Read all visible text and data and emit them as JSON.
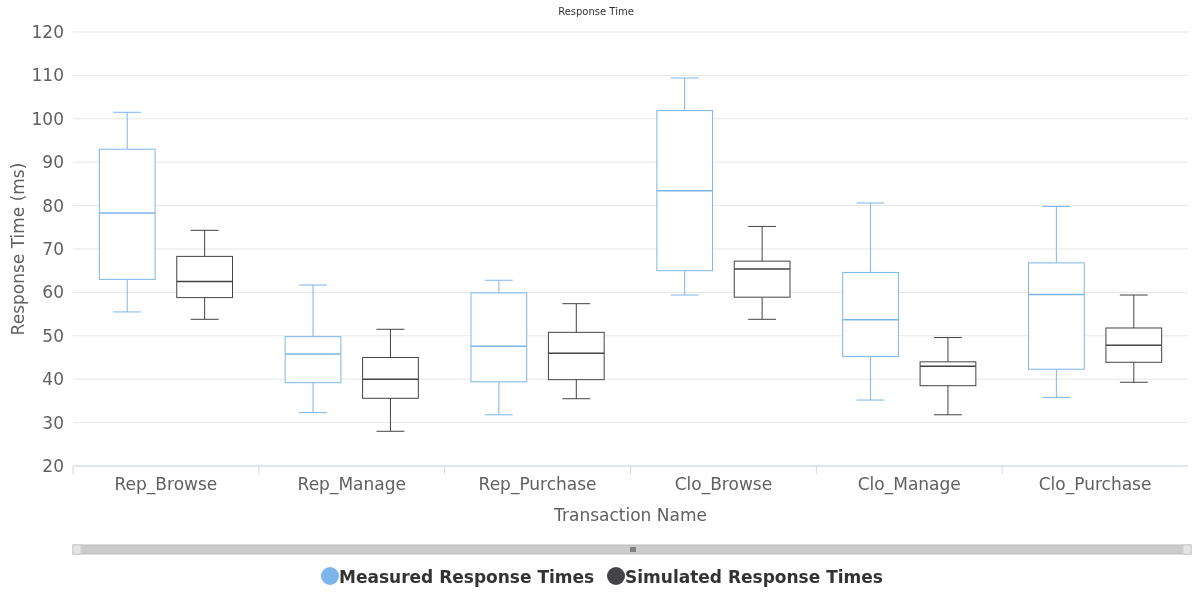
{
  "chart_data": {
    "type": "box",
    "title": "Response Time",
    "xlabel": "Transaction Name",
    "ylabel": "Response Time (ms)",
    "categories": [
      "Rep_Browse",
      "Rep_Manage",
      "Rep_Purchase",
      "Clo_Browse",
      "Clo_Manage",
      "Clo_Purchase"
    ],
    "ylim": [
      20,
      120
    ],
    "yticks": [
      20,
      30,
      40,
      50,
      60,
      70,
      80,
      90,
      100,
      110,
      120
    ],
    "grid": "y",
    "legend": "bottom",
    "series": [
      {
        "name": "Measured Response Times",
        "color": "#7cb5ec",
        "boxes": [
          {
            "low": 55.5,
            "q1": 63,
            "median": 78.3,
            "q3": 93,
            "high": 101.5
          },
          {
            "low": 32.3,
            "q1": 39.2,
            "median": 45.8,
            "q3": 49.8,
            "high": 61.7
          },
          {
            "low": 31.8,
            "q1": 39.4,
            "median": 47.6,
            "q3": 59.9,
            "high": 62.8
          },
          {
            "low": 59.4,
            "q1": 65,
            "median": 83.4,
            "q3": 101.9,
            "high": 109.4
          },
          {
            "low": 35.2,
            "q1": 45.2,
            "median": 53.7,
            "q3": 64.6,
            "high": 80.6
          },
          {
            "low": 35.8,
            "q1": 42.3,
            "median": 59.5,
            "q3": 66.8,
            "high": 79.8
          }
        ]
      },
      {
        "name": "Simulated Response Times",
        "color": "#434348",
        "boxes": [
          {
            "low": 53.8,
            "q1": 58.8,
            "median": 62.5,
            "q3": 68.3,
            "high": 74.3
          },
          {
            "low": 28,
            "q1": 35.6,
            "median": 40,
            "q3": 45,
            "high": 51.5
          },
          {
            "low": 35.5,
            "q1": 39.9,
            "median": 46,
            "q3": 50.8,
            "high": 57.4
          },
          {
            "low": 53.8,
            "q1": 58.9,
            "median": 65.4,
            "q3": 67.2,
            "high": 75.2
          },
          {
            "low": 31.8,
            "q1": 38.5,
            "median": 43,
            "q3": 44,
            "high": 49.6
          },
          {
            "low": 39.3,
            "q1": 43.9,
            "median": 47.8,
            "q3": 51.8,
            "high": 59.4
          }
        ]
      }
    ]
  }
}
